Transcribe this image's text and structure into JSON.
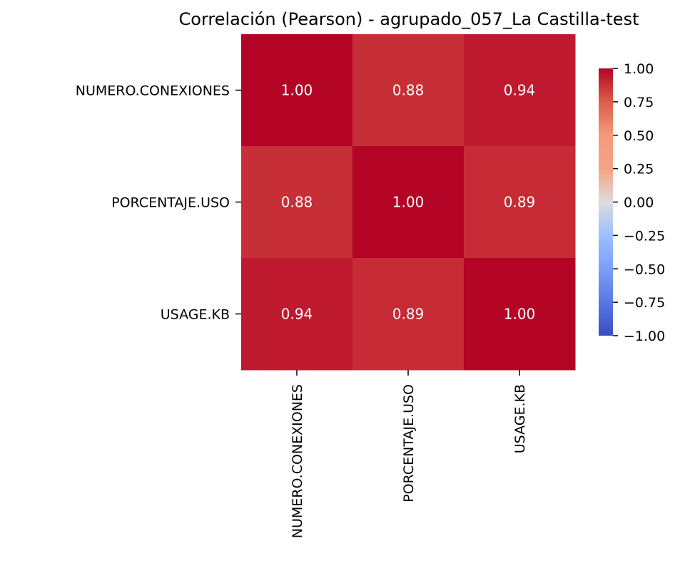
{
  "chart_data": {
    "type": "heatmap",
    "title": "Correlación (Pearson) - agrupado_057_La Castilla-test",
    "row_labels": [
      "NUMERO.CONEXIONES",
      "PORCENTAJE.USO",
      "USAGE.KB"
    ],
    "col_labels": [
      "NUMERO.CONEXIONES",
      "PORCENTAJE.USO",
      "USAGE.KB"
    ],
    "values": [
      [
        1.0,
        0.88,
        0.94
      ],
      [
        0.88,
        1.0,
        0.89
      ],
      [
        0.94,
        0.89,
        1.0
      ]
    ],
    "value_format_decimals": 2,
    "colormap": "coolwarm",
    "vmin": -1.0,
    "vmax": 1.0,
    "colorbar_ticks": [
      1.0,
      0.75,
      0.5,
      0.25,
      0.0,
      -0.25,
      -0.5,
      -0.75,
      -1.0
    ],
    "colorbar_tick_labels": [
      "1.00",
      "0.75",
      "0.50",
      "0.25",
      "0.00",
      "−0.25",
      "−0.50",
      "−0.75",
      "−1.00"
    ],
    "colors": {
      "cell_1_00": "#b40426",
      "cell_0_94": "#bf1e2d",
      "cell_0_89": "#c93b36",
      "cell_0_88": "#cb3e38",
      "annotation_text": "#ffffff",
      "axis_text": "#000000"
    }
  }
}
